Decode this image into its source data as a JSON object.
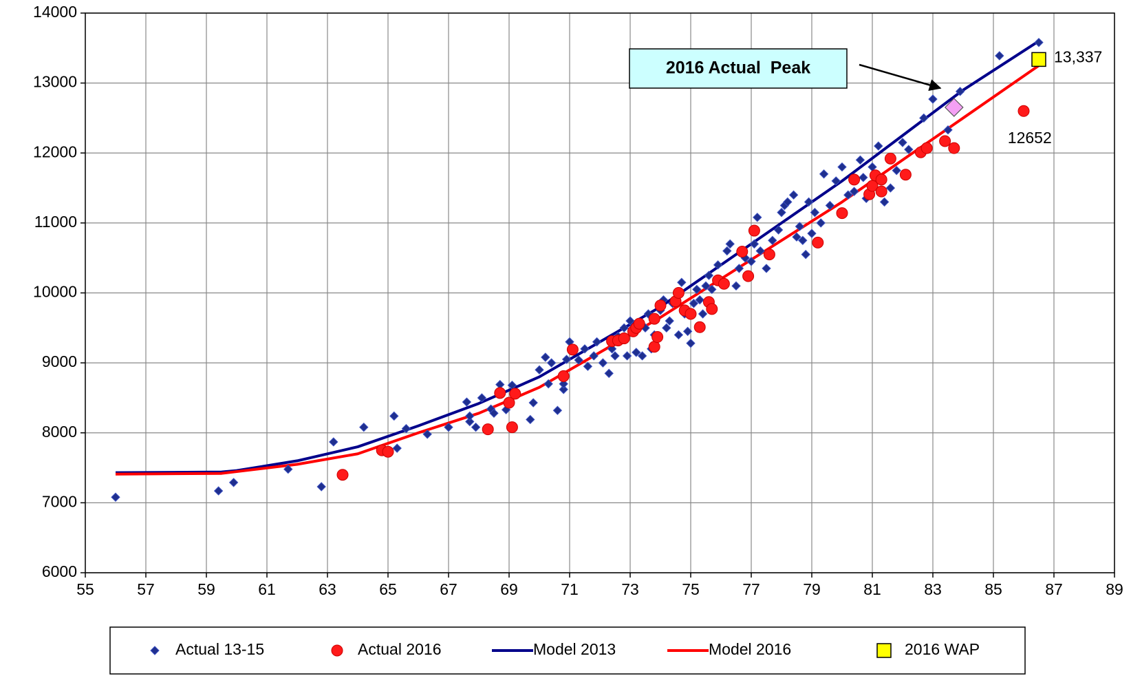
{
  "chart_data": {
    "type": "scatter",
    "xlim": [
      55,
      89
    ],
    "xticks": [
      55,
      57,
      59,
      61,
      63,
      65,
      67,
      69,
      71,
      73,
      75,
      77,
      79,
      81,
      83,
      85,
      87,
      89
    ],
    "ylim": [
      6000,
      14000
    ],
    "yticks": [
      6000,
      7000,
      8000,
      9000,
      10000,
      11000,
      12000,
      13000,
      14000
    ],
    "grid": true,
    "legend": "bottom",
    "series": [
      {
        "name": "Actual 13-15",
        "color": "#1f2f8f",
        "marker": "diamond",
        "x": [
          56,
          59.4,
          59.9,
          61.7,
          62.8,
          63.2,
          64.2,
          65.2,
          65.3,
          65.6,
          66.3,
          67,
          67.6,
          67.7,
          67.7,
          67.9,
          68.1,
          68.4,
          68.5,
          68.7,
          68.9,
          69.1,
          69.7,
          69.8,
          70,
          70.2,
          70.3,
          70.4,
          70.6,
          70.8,
          70.8,
          70.9,
          71,
          71.3,
          71.5,
          71.6,
          71.8,
          71.9,
          72.1,
          72.3,
          72.4,
          72.5,
          72.6,
          72.8,
          72.9,
          73,
          73.1,
          73.2,
          73.3,
          73.4,
          73.5,
          73.6,
          73.7,
          73.8,
          74,
          74.1,
          74.2,
          74.3,
          74.4,
          74.6,
          74.7,
          74.8,
          74.9,
          75,
          75.1,
          75.2,
          75.3,
          75.4,
          75.5,
          75.6,
          75.7,
          75.9,
          76,
          76.2,
          76.3,
          76.5,
          76.6,
          76.8,
          77,
          77.1,
          77.2,
          77.3,
          77.5,
          77.7,
          77.9,
          78,
          78.1,
          78.2,
          78.4,
          78.5,
          78.6,
          78.7,
          78.8,
          78.9,
          79,
          79.1,
          79.3,
          79.4,
          79.6,
          79.8,
          80,
          80.2,
          80.4,
          80.6,
          80.7,
          80.8,
          81,
          81.2,
          81.4,
          81.6,
          81.8,
          82,
          82.2,
          82.7,
          83,
          83.5,
          83.9,
          85.2,
          86.5
        ],
        "values": [
          7080,
          7170,
          7290,
          7480,
          7230,
          7870,
          8080,
          8240,
          7780,
          8060,
          7980,
          8080,
          8440,
          8160,
          8240,
          8080,
          8500,
          8340,
          8280,
          8690,
          8330,
          8680,
          8190,
          8430,
          8900,
          9080,
          8700,
          9000,
          8320,
          8620,
          8700,
          9050,
          9300,
          9040,
          9200,
          8950,
          9100,
          9300,
          9000,
          8850,
          9200,
          9100,
          9380,
          9500,
          9100,
          9600,
          9450,
          9150,
          9550,
          9100,
          9500,
          9700,
          9200,
          9400,
          9750,
          9900,
          9500,
          9600,
          9850,
          9400,
          10150,
          9700,
          9450,
          9280,
          9850,
          10050,
          9900,
          9700,
          10100,
          10250,
          10050,
          10400,
          10150,
          10600,
          10700,
          10100,
          10350,
          10500,
          10450,
          10700,
          11080,
          10600,
          10350,
          10750,
          10900,
          11150,
          11250,
          11300,
          11400,
          10800,
          10950,
          10750,
          10550,
          11300,
          10850,
          11150,
          11000,
          11700,
          11250,
          11600,
          11800,
          11400,
          11450,
          11900,
          11650,
          11350,
          11800,
          12100,
          11300,
          11500,
          11750,
          12150,
          12050,
          12500,
          12770,
          12330,
          12880,
          13390,
          13580
        ]
      },
      {
        "name": "Actual 2016",
        "color": "#ff1a1a",
        "marker": "circle",
        "x": [
          63.5,
          64.8,
          65,
          68.3,
          68.7,
          69,
          69.1,
          69.2,
          70.8,
          71.1,
          72.4,
          72.6,
          72.8,
          73.1,
          73.2,
          73.3,
          73.8,
          73.8,
          73.9,
          74,
          74.5,
          74.6,
          74.8,
          75,
          75.3,
          75.6,
          75.7,
          75.9,
          76.1,
          76.7,
          76.9,
          77.1,
          77.6,
          79.2,
          80,
          80.4,
          80.9,
          81,
          81.1,
          81.3,
          81.3,
          81.6,
          82.1,
          82.6,
          82.8,
          83.4,
          83.7,
          86
        ],
        "values": [
          7400,
          7750,
          7730,
          8050,
          8570,
          8430,
          8080,
          8560,
          8810,
          9190,
          9310,
          9320,
          9350,
          9450,
          9500,
          9560,
          9230,
          9630,
          9370,
          9820,
          9880,
          10000,
          9750,
          9700,
          9510,
          9870,
          9770,
          10180,
          10130,
          10590,
          10240,
          10890,
          10550,
          10720,
          11140,
          11620,
          11410,
          11530,
          11680,
          11450,
          11620,
          11920,
          11690,
          12010,
          12070,
          12170,
          12070,
          12600
        ]
      },
      {
        "name": "Model 2013",
        "color": "#00008b",
        "marker": "line",
        "x": [
          56,
          59.5,
          60,
          62,
          64,
          66,
          68,
          70,
          72,
          74,
          76,
          78,
          80,
          82,
          84,
          86.5
        ],
        "values": [
          7430,
          7440,
          7460,
          7600,
          7800,
          8100,
          8420,
          8800,
          9300,
          9800,
          10400,
          11000,
          11600,
          12250,
          12900,
          13600
        ]
      },
      {
        "name": "Model 2016",
        "color": "#ff0000",
        "marker": "line",
        "x": [
          56,
          59.5,
          62,
          64,
          66,
          68,
          70,
          72,
          74,
          76,
          78,
          80,
          82,
          84,
          86.5
        ],
        "values": [
          7410,
          7420,
          7550,
          7700,
          8000,
          8280,
          8650,
          9150,
          9650,
          10200,
          10750,
          11300,
          11900,
          12500,
          13250
        ]
      },
      {
        "name": "2016 WAP",
        "color": "#ffff00",
        "marker": "square",
        "x": [
          86.5
        ],
        "values": [
          13337
        ],
        "value_labels": [
          "13,337"
        ]
      }
    ],
    "peak": {
      "x": 83.7,
      "value": 12652,
      "color": "#f4a0f4"
    },
    "callout": "2016 Actual  Peak"
  }
}
